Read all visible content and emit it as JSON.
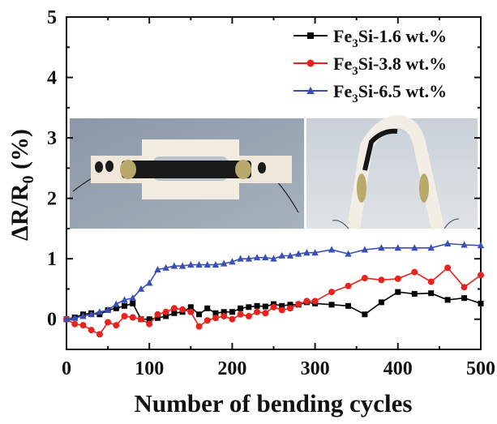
{
  "chart_data": {
    "type": "line",
    "xlabel": "Number of bending cycles",
    "ylabel": "ΔR/R0 (%)",
    "xlim": [
      0,
      500
    ],
    "ylim": [
      -0.5,
      5
    ],
    "xticks": [
      "0",
      "100",
      "200",
      "300",
      "400",
      "500"
    ],
    "yticks": [
      "0",
      "1",
      "2",
      "3",
      "4",
      "5"
    ],
    "legend_position": "top-right",
    "series": [
      {
        "name": "Fe3Si-1.6 wt.%",
        "color": "#000000",
        "marker": "square",
        "x": [
          0,
          10,
          20,
          30,
          40,
          50,
          60,
          70,
          80,
          90,
          100,
          110,
          120,
          130,
          140,
          150,
          160,
          170,
          180,
          190,
          200,
          210,
          220,
          230,
          240,
          250,
          260,
          270,
          280,
          290,
          300,
          320,
          340,
          360,
          380,
          400,
          420,
          440,
          460,
          480,
          500
        ],
        "y": [
          0.0,
          0.03,
          0.08,
          0.1,
          0.08,
          0.15,
          0.18,
          0.22,
          0.26,
          0.0,
          0.0,
          0.02,
          0.05,
          0.1,
          0.12,
          0.2,
          0.08,
          0.18,
          0.1,
          0.12,
          0.12,
          0.18,
          0.2,
          0.22,
          0.21,
          0.25,
          0.22,
          0.24,
          0.24,
          0.28,
          0.26,
          0.24,
          0.22,
          0.08,
          0.28,
          0.45,
          0.42,
          0.43,
          0.32,
          0.35,
          0.26
        ]
      },
      {
        "name": "Fe3Si-3.8 wt.%",
        "color": "#e8221c",
        "marker": "circle",
        "x": [
          0,
          10,
          20,
          30,
          40,
          50,
          60,
          70,
          80,
          90,
          100,
          110,
          120,
          130,
          140,
          150,
          160,
          170,
          180,
          190,
          200,
          210,
          220,
          230,
          240,
          250,
          260,
          270,
          280,
          290,
          300,
          320,
          340,
          360,
          380,
          400,
          420,
          440,
          460,
          480,
          500
        ],
        "y": [
          0.0,
          -0.08,
          -0.1,
          -0.18,
          -0.25,
          -0.05,
          -0.1,
          0.05,
          0.03,
          0.0,
          -0.08,
          0.08,
          0.12,
          0.18,
          0.16,
          0.12,
          -0.12,
          -0.02,
          0.02,
          0.05,
          0.0,
          0.08,
          0.05,
          0.12,
          0.1,
          0.2,
          0.15,
          0.18,
          0.25,
          0.3,
          0.3,
          0.45,
          0.55,
          0.68,
          0.65,
          0.67,
          0.78,
          0.62,
          0.85,
          0.53,
          0.73
        ]
      },
      {
        "name": "Fe3Si-6.5 wt.%",
        "color": "#3a4fb5",
        "marker": "triangle",
        "x": [
          0,
          10,
          20,
          30,
          40,
          50,
          60,
          70,
          80,
          90,
          100,
          110,
          120,
          130,
          140,
          150,
          160,
          170,
          180,
          190,
          200,
          210,
          220,
          230,
          240,
          250,
          260,
          270,
          280,
          290,
          300,
          320,
          340,
          360,
          380,
          400,
          420,
          440,
          460,
          480,
          500
        ],
        "y": [
          0.0,
          0.02,
          0.05,
          0.08,
          0.12,
          0.15,
          0.25,
          0.32,
          0.35,
          0.5,
          0.6,
          0.82,
          0.85,
          0.88,
          0.88,
          0.9,
          0.9,
          0.9,
          0.9,
          0.92,
          0.95,
          1.0,
          1.0,
          1.02,
          1.02,
          1.0,
          1.05,
          1.05,
          1.08,
          1.1,
          1.1,
          1.15,
          1.08,
          1.15,
          1.18,
          1.18,
          1.18,
          1.18,
          1.25,
          1.23,
          1.22
        ]
      }
    ]
  }
}
